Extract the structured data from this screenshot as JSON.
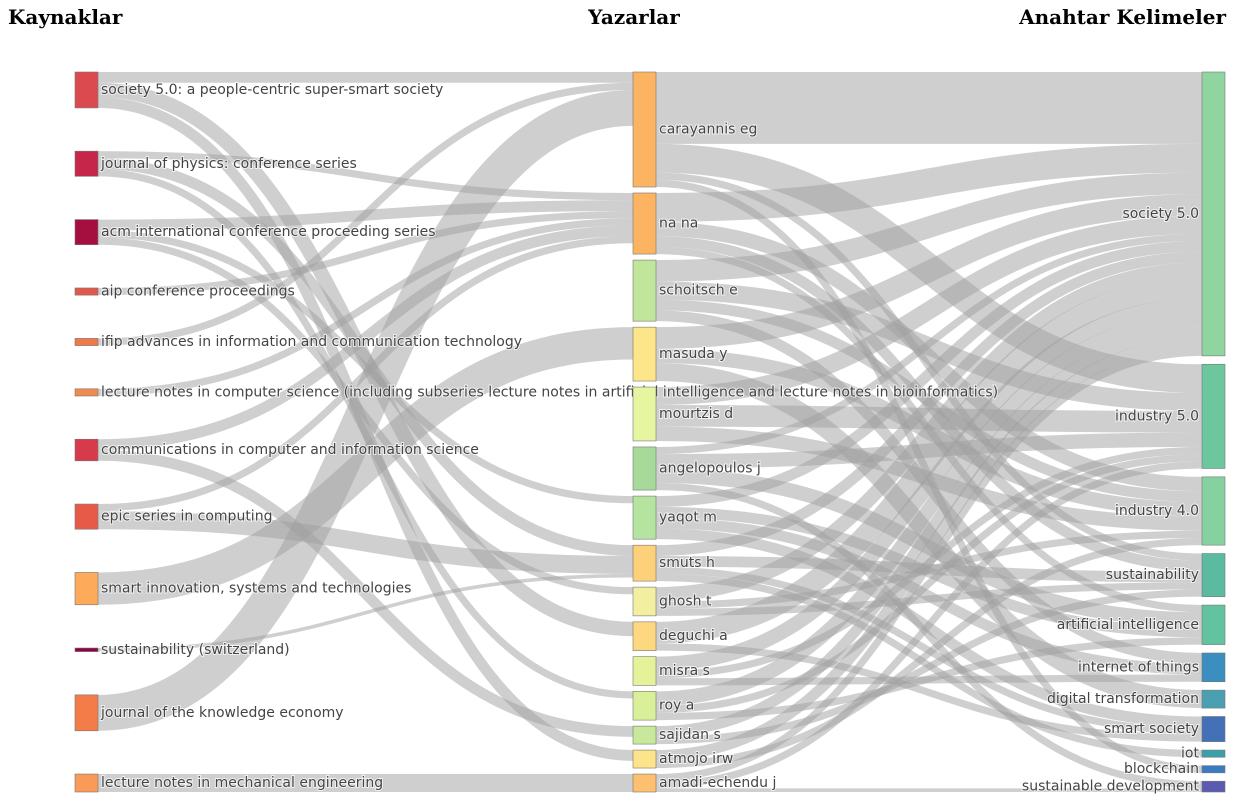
{
  "chart_data": {
    "type": "sankey",
    "columns": [
      {
        "title": "Kaynaklar",
        "nodes": [
          {
            "name": "society 5.0: a people-centric super-smart society",
            "color": "#db4a4f"
          },
          {
            "name": "journal of physics: conference series",
            "color": "#c6264a"
          },
          {
            "name": "acm international conference proceeding series",
            "color": "#a50f3f"
          },
          {
            "name": "aip conference proceedings",
            "color": "#e0584a"
          },
          {
            "name": "ifip advances in information and communication technology",
            "color": "#ee7a4a"
          },
          {
            "name": "lecture notes in computer science (including subseries lecture notes in artificial intelligence and lecture notes in bioinformatics)",
            "color": "#f08a50"
          },
          {
            "name": "communications in computer and information science",
            "color": "#d73a4a"
          },
          {
            "name": "epic series in computing",
            "color": "#e85a48"
          },
          {
            "name": "smart innovation, systems and technologies",
            "color": "#fdaa5a"
          },
          {
            "name": "sustainability (switzerland)",
            "color": "#8e0143"
          },
          {
            "name": "journal of the knowledge economy",
            "color": "#f47c48"
          },
          {
            "name": "lecture notes in mechanical engineering",
            "color": "#f99a58"
          }
        ]
      },
      {
        "title": "Yazarlar",
        "nodes": [
          {
            "name": "carayannis eg",
            "color": "#fdb462"
          },
          {
            "name": "na na",
            "color": "#fdb462"
          },
          {
            "name": "schoitsch e",
            "color": "#c2e59c"
          },
          {
            "name": "masuda y",
            "color": "#fde68a"
          },
          {
            "name": "mourtzis d",
            "color": "#e6f5a0"
          },
          {
            "name": "angelopoulos j",
            "color": "#a6d99a"
          },
          {
            "name": "yaqot m",
            "color": "#b5e3a0"
          },
          {
            "name": "smuts h",
            "color": "#fdd07a"
          },
          {
            "name": "ghosh t",
            "color": "#f2f0a0"
          },
          {
            "name": "deguchi a",
            "color": "#fdd880"
          },
          {
            "name": "misra s",
            "color": "#e6f29a"
          },
          {
            "name": "roy a",
            "color": "#d9ef9a"
          },
          {
            "name": "sajidan s",
            "color": "#c8e89c"
          },
          {
            "name": "atmojo irw",
            "color": "#fde48a"
          },
          {
            "name": "amadi-echendu j",
            "color": "#fdc070"
          }
        ]
      },
      {
        "title": "Anahtar Kelimeler",
        "nodes": [
          {
            "name": "society 5.0",
            "color": "#90d4a0"
          },
          {
            "name": "industry 5.0",
            "color": "#6cc79f"
          },
          {
            "name": "industry 4.0",
            "color": "#86d1a0"
          },
          {
            "name": "sustainability",
            "color": "#5bbba0"
          },
          {
            "name": "artificial intelligence",
            "color": "#63c3a0"
          },
          {
            "name": "internet of things",
            "color": "#3a8ec0"
          },
          {
            "name": "digital transformation",
            "color": "#4a9fb0"
          },
          {
            "name": "smart society",
            "color": "#4470b8"
          },
          {
            "name": "iot",
            "color": "#3aa0a8"
          },
          {
            "name": "blockchain",
            "color": "#3a7cc0"
          },
          {
            "name": "sustainable development",
            "color": "#5a5ab0"
          }
        ]
      }
    ],
    "links": [
      [
        {
          "source": "society 5.0: a people-centric super-smart society",
          "target": "carayannis eg",
          "value": 3
        },
        {
          "source": "society 5.0: a people-centric super-smart society",
          "target": "deguchi a",
          "value": 4
        },
        {
          "source": "society 5.0: a people-centric super-smart society",
          "target": "atmojo irw",
          "value": 3
        },
        {
          "source": "journal of physics: conference series",
          "target": "na na",
          "value": 2
        },
        {
          "source": "journal of physics: conference series",
          "target": "smuts h",
          "value": 3
        },
        {
          "source": "journal of physics: conference series",
          "target": "roy a",
          "value": 2
        },
        {
          "source": "acm international conference proceeding series",
          "target": "na na",
          "value": 3
        },
        {
          "source": "acm international conference proceeding series",
          "target": "yaqot m",
          "value": 2
        },
        {
          "source": "acm international conference proceeding series",
          "target": "ghosh t",
          "value": 2
        },
        {
          "source": "aip conference proceedings",
          "target": "na na",
          "value": 2
        },
        {
          "source": "ifip advances in information and communication technology",
          "target": "carayannis eg",
          "value": 2
        },
        {
          "source": "lecture notes in computer science (including subseries lecture notes in artificial intelligence and lecture notes in bioinformatics)",
          "target": "na na",
          "value": 2
        },
        {
          "source": "communications in computer and information science",
          "target": "na na",
          "value": 3
        },
        {
          "source": "communications in computer and information science",
          "target": "sajidan s",
          "value": 3
        },
        {
          "source": "epic series in computing",
          "target": "na na",
          "value": 2
        },
        {
          "source": "epic series in computing",
          "target": "smuts h",
          "value": 5
        },
        {
          "source": "smart innovation, systems and technologies",
          "target": "masuda y",
          "value": 9
        },
        {
          "source": "sustainability (switzerland)",
          "target": "smuts h",
          "value": 1
        },
        {
          "source": "journal of the knowledge economy",
          "target": "carayannis eg",
          "value": 10
        },
        {
          "source": "lecture notes in mechanical engineering",
          "target": "amadi-echendu j",
          "value": 5
        }
      ],
      [
        {
          "source": "carayannis eg",
          "target": "society 5.0",
          "value": 20
        },
        {
          "source": "carayannis eg",
          "target": "industry 5.0",
          "value": 8
        },
        {
          "source": "carayannis eg",
          "target": "sustainability",
          "value": 2
        },
        {
          "source": "carayannis eg",
          "target": "blockchain",
          "value": 2
        },
        {
          "source": "na na",
          "target": "society 5.0",
          "value": 8
        },
        {
          "source": "na na",
          "target": "industry 4.0",
          "value": 4
        },
        {
          "source": "na na",
          "target": "sustainability",
          "value": 3
        },
        {
          "source": "na na",
          "target": "artificial intelligence",
          "value": 2
        },
        {
          "source": "schoitsch e",
          "target": "society 5.0",
          "value": 6
        },
        {
          "source": "schoitsch e",
          "target": "industry 5.0",
          "value": 5
        },
        {
          "source": "schoitsch e",
          "target": "industry 4.0",
          "value": 3
        },
        {
          "source": "schoitsch e",
          "target": "internet of things",
          "value": 3
        },
        {
          "source": "masuda y",
          "target": "society 5.0",
          "value": 6
        },
        {
          "source": "masuda y",
          "target": "industry 4.0",
          "value": 4
        },
        {
          "source": "masuda y",
          "target": "digital transformation",
          "value": 5
        },
        {
          "source": "mourtzis d",
          "target": "society 5.0",
          "value": 5
        },
        {
          "source": "mourtzis d",
          "target": "industry 5.0",
          "value": 6
        },
        {
          "source": "mourtzis d",
          "target": "industry 4.0",
          "value": 4
        },
        {
          "source": "angelopoulos j",
          "target": "society 5.0",
          "value": 2
        },
        {
          "source": "angelopoulos j",
          "target": "industry 5.0",
          "value": 4
        },
        {
          "source": "angelopoulos j",
          "target": "artificial intelligence",
          "value": 4
        },
        {
          "source": "angelopoulos j",
          "target": "sustainable development",
          "value": 2
        },
        {
          "source": "yaqot m",
          "target": "society 5.0",
          "value": 3
        },
        {
          "source": "yaqot m",
          "target": "artificial intelligence",
          "value": 3
        },
        {
          "source": "yaqot m",
          "target": "internet of things",
          "value": 3
        },
        {
          "source": "yaqot m",
          "target": "smart society",
          "value": 3
        },
        {
          "source": "smuts h",
          "target": "society 5.0",
          "value": 3
        },
        {
          "source": "smuts h",
          "target": "sustainability",
          "value": 3
        },
        {
          "source": "smuts h",
          "target": "smart society",
          "value": 2
        },
        {
          "source": "smuts h",
          "target": "iot",
          "value": 2
        },
        {
          "source": "ghosh t",
          "target": "society 5.0",
          "value": 4
        },
        {
          "source": "ghosh t",
          "target": "industry 4.0",
          "value": 2
        },
        {
          "source": "ghosh t",
          "target": "sustainability",
          "value": 2
        },
        {
          "source": "deguchi a",
          "target": "society 5.0",
          "value": 6
        },
        {
          "source": "deguchi a",
          "target": "smart society",
          "value": 2
        },
        {
          "source": "misra s",
          "target": "society 5.0",
          "value": 4
        },
        {
          "source": "misra s",
          "target": "industry 5.0",
          "value": 2
        },
        {
          "source": "misra s",
          "target": "internet of things",
          "value": 2
        },
        {
          "source": "roy a",
          "target": "society 5.0",
          "value": 4
        },
        {
          "source": "roy a",
          "target": "industry 5.0",
          "value": 2
        },
        {
          "source": "roy a",
          "target": "artificial intelligence",
          "value": 2
        },
        {
          "source": "sajidan s",
          "target": "society 5.0",
          "value": 3
        },
        {
          "source": "sajidan s",
          "target": "sustainability",
          "value": 2
        },
        {
          "source": "atmojo irw",
          "target": "society 5.0",
          "value": 3
        },
        {
          "source": "atmojo irw",
          "target": "industry 4.0",
          "value": 2
        },
        {
          "source": "amadi-echendu j",
          "target": "society 5.0",
          "value": 2
        },
        {
          "source": "amadi-echendu j",
          "target": "industry 5.0",
          "value": 2
        },
        {
          "source": "amadi-echendu j",
          "target": "sustainable development",
          "value": 1
        }
      ]
    ]
  }
}
